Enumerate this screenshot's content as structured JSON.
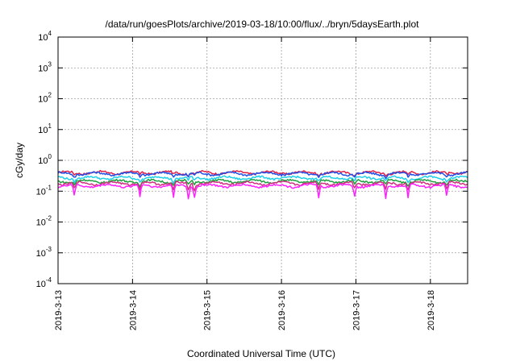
{
  "chart_data": {
    "type": "line",
    "title": "/data/run/goesPlots/archive/2019-03-18/10:00/flux/../bryn/5daysEarth.plot",
    "xlabel": "Coordinated Universal Time (UTC)",
    "ylabel": "cGy/day",
    "yscale": "log",
    "ylim": [
      0.0001,
      10000
    ],
    "xlim_days": [
      0,
      5.5
    ],
    "grid": true,
    "y_ticks": [
      {
        "base": "10",
        "exp": "4",
        "value": 10000
      },
      {
        "base": "10",
        "exp": "3",
        "value": 1000
      },
      {
        "base": "10",
        "exp": "2",
        "value": 100
      },
      {
        "base": "10",
        "exp": "1",
        "value": 10
      },
      {
        "base": "10",
        "exp": "0",
        "value": 1
      },
      {
        "base": "10",
        "exp": "-1",
        "value": 0.1
      },
      {
        "base": "10",
        "exp": "-2",
        "value": 0.01
      },
      {
        "base": "10",
        "exp": "-3",
        "value": 0.001
      },
      {
        "base": "10",
        "exp": "-4",
        "value": 0.0001
      }
    ],
    "x_ticks": [
      {
        "label": "2019-3-13",
        "day": 0
      },
      {
        "label": "2019-3-14",
        "day": 1
      },
      {
        "label": "2019-3-15",
        "day": 2
      },
      {
        "label": "2019-3-16",
        "day": 3
      },
      {
        "label": "2019-3-17",
        "day": 4
      },
      {
        "label": "2019-3-18",
        "day": 5
      }
    ],
    "series": [
      {
        "color": "#e0204a",
        "base": 0.4,
        "dip_factor": 0.85
      },
      {
        "color": "#2050e8",
        "base": 0.37,
        "dip_factor": 0.8
      },
      {
        "color": "#20d0e8",
        "base": 0.27,
        "dip_factor": 0.78
      },
      {
        "color": "#20a040",
        "base": 0.21,
        "dip_factor": 0.75
      },
      {
        "color": "#d03080",
        "base": 0.18,
        "dip_factor": 0.6
      },
      {
        "color": "#ff20ff",
        "base": 0.15,
        "dip_factor": 0.4
      }
    ],
    "dips_days": [
      0.22,
      1.1,
      1.55,
      1.75,
      1.83,
      3.5,
      3.98,
      4.4,
      4.7,
      5.22
    ]
  }
}
